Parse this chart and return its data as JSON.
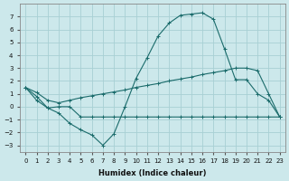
{
  "xlabel": "Humidex (Indice chaleur)",
  "bg_color": "#cce8eb",
  "grid_color": "#a8d0d4",
  "line_color": "#1a6b6b",
  "x_ticks": [
    0,
    1,
    2,
    3,
    4,
    5,
    6,
    7,
    8,
    9,
    10,
    11,
    12,
    13,
    14,
    15,
    16,
    17,
    18,
    19,
    20,
    21,
    22,
    23
  ],
  "ylim": [
    -3.5,
    8.0
  ],
  "xlim": [
    -0.5,
    23.5
  ],
  "yticks": [
    -3,
    -2,
    -1,
    0,
    1,
    2,
    3,
    4,
    5,
    6,
    7
  ],
  "series1_x": [
    0,
    1,
    2,
    3,
    4,
    5,
    6,
    7,
    8,
    9,
    10,
    11,
    12,
    13,
    14,
    15,
    16,
    17,
    18,
    19,
    20,
    21,
    22,
    23
  ],
  "series1_y": [
    1.5,
    0.8,
    -0.1,
    -0.5,
    -1.3,
    -1.8,
    -2.2,
    -3.0,
    -2.1,
    0.0,
    2.2,
    3.8,
    5.5,
    6.5,
    7.1,
    7.2,
    7.3,
    6.8,
    4.5,
    2.1,
    2.1,
    1.0,
    0.5,
    -0.8
  ],
  "series2_x": [
    0,
    1,
    2,
    3,
    4,
    5,
    6,
    7,
    8,
    9,
    10,
    11,
    12,
    13,
    14,
    15,
    16,
    17,
    18,
    19,
    20,
    21,
    22,
    23
  ],
  "series2_y": [
    1.5,
    1.1,
    0.5,
    0.3,
    0.5,
    0.7,
    0.85,
    1.0,
    1.15,
    1.3,
    1.5,
    1.65,
    1.8,
    2.0,
    2.15,
    2.3,
    2.5,
    2.65,
    2.8,
    3.0,
    3.0,
    2.8,
    1.0,
    -0.8
  ],
  "series3_x": [
    0,
    1,
    2,
    3,
    4,
    5,
    6,
    7,
    8,
    9,
    10,
    11,
    12,
    13,
    14,
    15,
    16,
    17,
    18,
    19,
    20,
    21,
    22,
    23
  ],
  "series3_y": [
    1.5,
    0.5,
    -0.1,
    0.0,
    0.0,
    -0.8,
    -0.8,
    -0.8,
    -0.8,
    -0.8,
    -0.8,
    -0.8,
    -0.8,
    -0.8,
    -0.8,
    -0.8,
    -0.8,
    -0.8,
    -0.8,
    -0.8,
    -0.8,
    -0.8,
    -0.8,
    -0.8
  ]
}
